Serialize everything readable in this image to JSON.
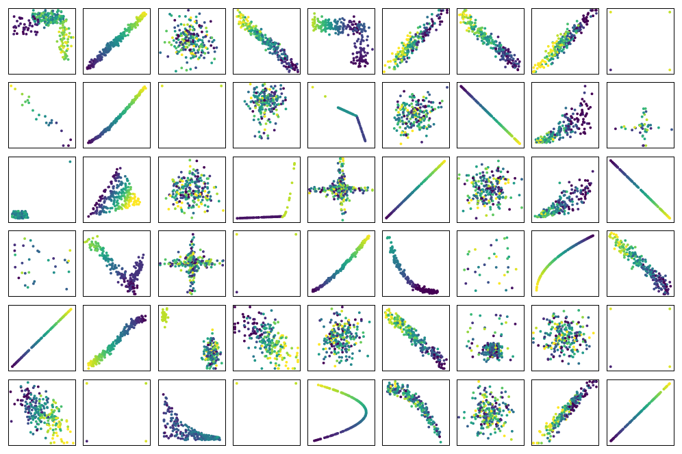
{
  "figure": {
    "rows": 6,
    "cols": 9,
    "colormap": "viridis",
    "colormap_stops": [
      "#440154",
      "#482878",
      "#3e4989",
      "#31688e",
      "#26828e",
      "#1f9e89",
      "#35b779",
      "#6ece58",
      "#b5de2b",
      "#fde725"
    ],
    "background": "#ffffff",
    "frame_color": "#000000",
    "axes_ticks": "none"
  },
  "chart_data": {
    "type": "scatter",
    "grid": false,
    "legend": "none",
    "axis_range": {
      "x": [
        0,
        1
      ],
      "y": [
        0,
        1
      ]
    },
    "panels": [
      {
        "row": 0,
        "col": 0,
        "shape": "l_corner",
        "seed": 11
      },
      {
        "row": 0,
        "col": 1,
        "shape": "diag_up_band",
        "seed": 12
      },
      {
        "row": 0,
        "col": 2,
        "shape": "blob",
        "seed": 13
      },
      {
        "row": 0,
        "col": 3,
        "shape": "diag_down_band",
        "seed": 14
      },
      {
        "row": 0,
        "col": 4,
        "shape": "corner_bend",
        "seed": 15
      },
      {
        "row": 0,
        "col": 5,
        "shape": "cloud_up",
        "seed": 16
      },
      {
        "row": 0,
        "col": 6,
        "shape": "diag_down_band",
        "seed": 17
      },
      {
        "row": 0,
        "col": 7,
        "shape": "cloud_up",
        "seed": 18
      },
      {
        "row": 0,
        "col": 8,
        "shape": "few_corners",
        "seed": 19
      },
      {
        "row": 1,
        "col": 0,
        "shape": "sparse_down",
        "seed": 21
      },
      {
        "row": 1,
        "col": 1,
        "shape": "curve_up",
        "seed": 22
      },
      {
        "row": 1,
        "col": 2,
        "shape": "few_corners",
        "seed": 23
      },
      {
        "row": 1,
        "col": 3,
        "shape": "blob_top",
        "seed": 24
      },
      {
        "row": 1,
        "col": 4,
        "shape": "kink_down",
        "seed": 25
      },
      {
        "row": 1,
        "col": 5,
        "shape": "blob",
        "seed": 26
      },
      {
        "row": 1,
        "col": 6,
        "shape": "diag_down_line",
        "seed": 27
      },
      {
        "row": 1,
        "col": 7,
        "shape": "fan_up",
        "seed": 28
      },
      {
        "row": 1,
        "col": 8,
        "shape": "cross_sparse",
        "seed": 29
      },
      {
        "row": 2,
        "col": 0,
        "shape": "corner_cluster",
        "seed": 31
      },
      {
        "row": 2,
        "col": 1,
        "shape": "triangle",
        "seed": 32
      },
      {
        "row": 2,
        "col": 2,
        "shape": "blob",
        "seed": 33
      },
      {
        "row": 2,
        "col": 3,
        "shape": "hockey",
        "seed": 34
      },
      {
        "row": 2,
        "col": 4,
        "shape": "cross",
        "seed": 35
      },
      {
        "row": 2,
        "col": 5,
        "shape": "diag_up_line",
        "seed": 36
      },
      {
        "row": 2,
        "col": 6,
        "shape": "blob",
        "seed": 37
      },
      {
        "row": 2,
        "col": 7,
        "shape": "fan_up",
        "seed": 38
      },
      {
        "row": 2,
        "col": 8,
        "shape": "diag_down_line",
        "seed": 39
      },
      {
        "row": 3,
        "col": 0,
        "shape": "sparse",
        "seed": 41
      },
      {
        "row": 3,
        "col": 1,
        "shape": "v_shape",
        "seed": 42
      },
      {
        "row": 3,
        "col": 2,
        "shape": "cross",
        "seed": 43
      },
      {
        "row": 3,
        "col": 3,
        "shape": "few_corners",
        "seed": 44
      },
      {
        "row": 3,
        "col": 4,
        "shape": "curve_up",
        "seed": 45
      },
      {
        "row": 3,
        "col": 5,
        "shape": "l_curve",
        "seed": 46
      },
      {
        "row": 3,
        "col": 6,
        "shape": "sparse",
        "seed": 47
      },
      {
        "row": 3,
        "col": 7,
        "shape": "sqrt_curve",
        "seed": 48
      },
      {
        "row": 3,
        "col": 8,
        "shape": "diag_down_band",
        "seed": 49
      },
      {
        "row": 4,
        "col": 0,
        "shape": "diag_up_line",
        "seed": 51
      },
      {
        "row": 4,
        "col": 1,
        "shape": "arch_up",
        "seed": 52
      },
      {
        "row": 4,
        "col": 2,
        "shape": "two_clusters",
        "seed": 53
      },
      {
        "row": 4,
        "col": 3,
        "shape": "blob_down",
        "seed": 54
      },
      {
        "row": 4,
        "col": 4,
        "shape": "blob",
        "seed": 55
      },
      {
        "row": 4,
        "col": 5,
        "shape": "diag_down_band",
        "seed": 56
      },
      {
        "row": 4,
        "col": 6,
        "shape": "center_cluster",
        "seed": 57
      },
      {
        "row": 4,
        "col": 7,
        "shape": "blob",
        "seed": 58
      },
      {
        "row": 4,
        "col": 8,
        "shape": "few_corners",
        "seed": 59
      },
      {
        "row": 5,
        "col": 0,
        "shape": "blob_down",
        "seed": 61
      },
      {
        "row": 5,
        "col": 1,
        "shape": "few_corners",
        "seed": 62
      },
      {
        "row": 5,
        "col": 2,
        "shape": "decay_cloud",
        "seed": 63
      },
      {
        "row": 5,
        "col": 3,
        "shape": "few_corners",
        "seed": 64
      },
      {
        "row": 5,
        "col": 4,
        "shape": "parabola_side",
        "seed": 65
      },
      {
        "row": 5,
        "col": 5,
        "shape": "arch_down",
        "seed": 66
      },
      {
        "row": 5,
        "col": 6,
        "shape": "blob",
        "seed": 67
      },
      {
        "row": 5,
        "col": 7,
        "shape": "cloud_up",
        "seed": 68
      },
      {
        "row": 5,
        "col": 8,
        "shape": "diag_up_line",
        "seed": 69
      }
    ]
  }
}
